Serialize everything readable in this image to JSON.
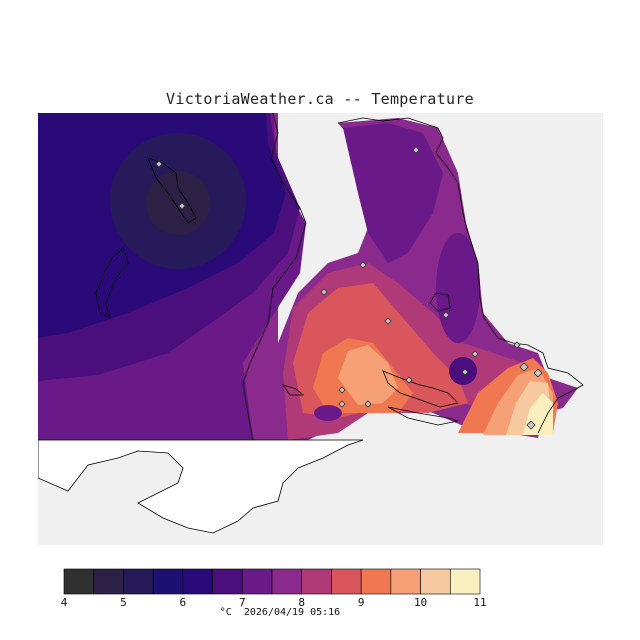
{
  "title": "VictoriaWeather.ca -- Temperature",
  "footer": {
    "units": "°C",
    "timestamp": "2026/04/19 05:16"
  },
  "legend": {
    "colors": [
      "#303030",
      "#2c2044",
      "#261a5a",
      "#1e0f72",
      "#2a0a78",
      "#4a0f7c",
      "#6a1a88",
      "#8a2a8c",
      "#b03a78",
      "#d8565c",
      "#f07850",
      "#f5a076",
      "#f7c99e",
      "#f9efbe"
    ],
    "tick_labels": [
      "4",
      "5",
      "6",
      "7",
      "8",
      "9",
      "10",
      "11"
    ]
  },
  "map": {
    "background": "#f0f0f0",
    "station_count": 15
  }
}
